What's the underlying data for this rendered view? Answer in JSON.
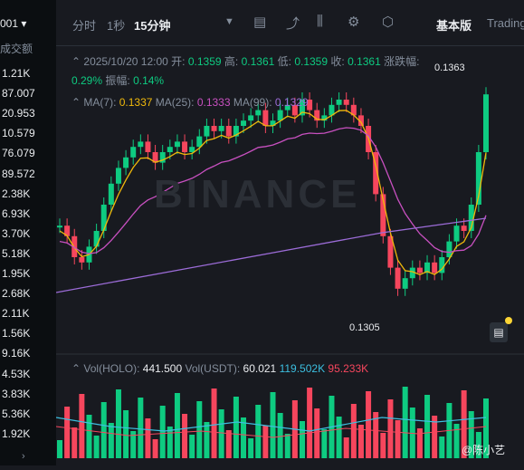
{
  "orderbook": {
    "header_value": "001 ▾",
    "header_label": "成交额",
    "rows": [
      "1.21K",
      "87.007",
      "20.953",
      "10.579",
      "76.079",
      "89.572",
      "2.38K",
      "6.93K",
      "3.70K",
      "5.18K",
      "1.95K",
      "2.68K",
      "2.11K",
      "1.56K",
      "9.16K",
      "4.53K",
      "3.83K",
      "5.36K",
      "1.92K"
    ],
    "more_arrow": "›"
  },
  "toolbar": {
    "items": [
      "分时",
      "1秒",
      "15分钟"
    ],
    "active": "15分钟",
    "basic_label": "基本版",
    "trading_label": "Trading"
  },
  "ohlc": {
    "datetime": "2025/10/20 12:00",
    "open_label": "开:",
    "open": "0.1359",
    "high_label": "高:",
    "high": "0.1361",
    "low_label": "低:",
    "low": "0.1359",
    "close_label": "收:",
    "close": "0.1361",
    "change_label": "涨跌幅:",
    "change": "0.29%",
    "amp_label": "振幅:",
    "amp": "0.14%"
  },
  "ma": {
    "ma7_label": "MA(7):",
    "ma7": "0.1337",
    "ma25_label": "MA(25):",
    "ma25": "0.1333",
    "ma99_label": "MA(99):",
    "ma99": "0.1329"
  },
  "volume": {
    "holo_label": "Vol(HOLO):",
    "holo": "441.500",
    "usdt_label": "Vol(USDT):",
    "usdt": "60.021",
    "v2": "119.502K",
    "v3": "95.233K"
  },
  "annotations": {
    "high": "0.1363",
    "low": "0.1305"
  },
  "watermark": "BINANCE",
  "user": "@陈小艺",
  "colors": {
    "up": "#0ecb81",
    "down": "#f6465d",
    "ma7": "#f0b90b",
    "ma25": "#c850c0",
    "ma99": "#9c6cd8",
    "bg": "#181a20"
  }
}
